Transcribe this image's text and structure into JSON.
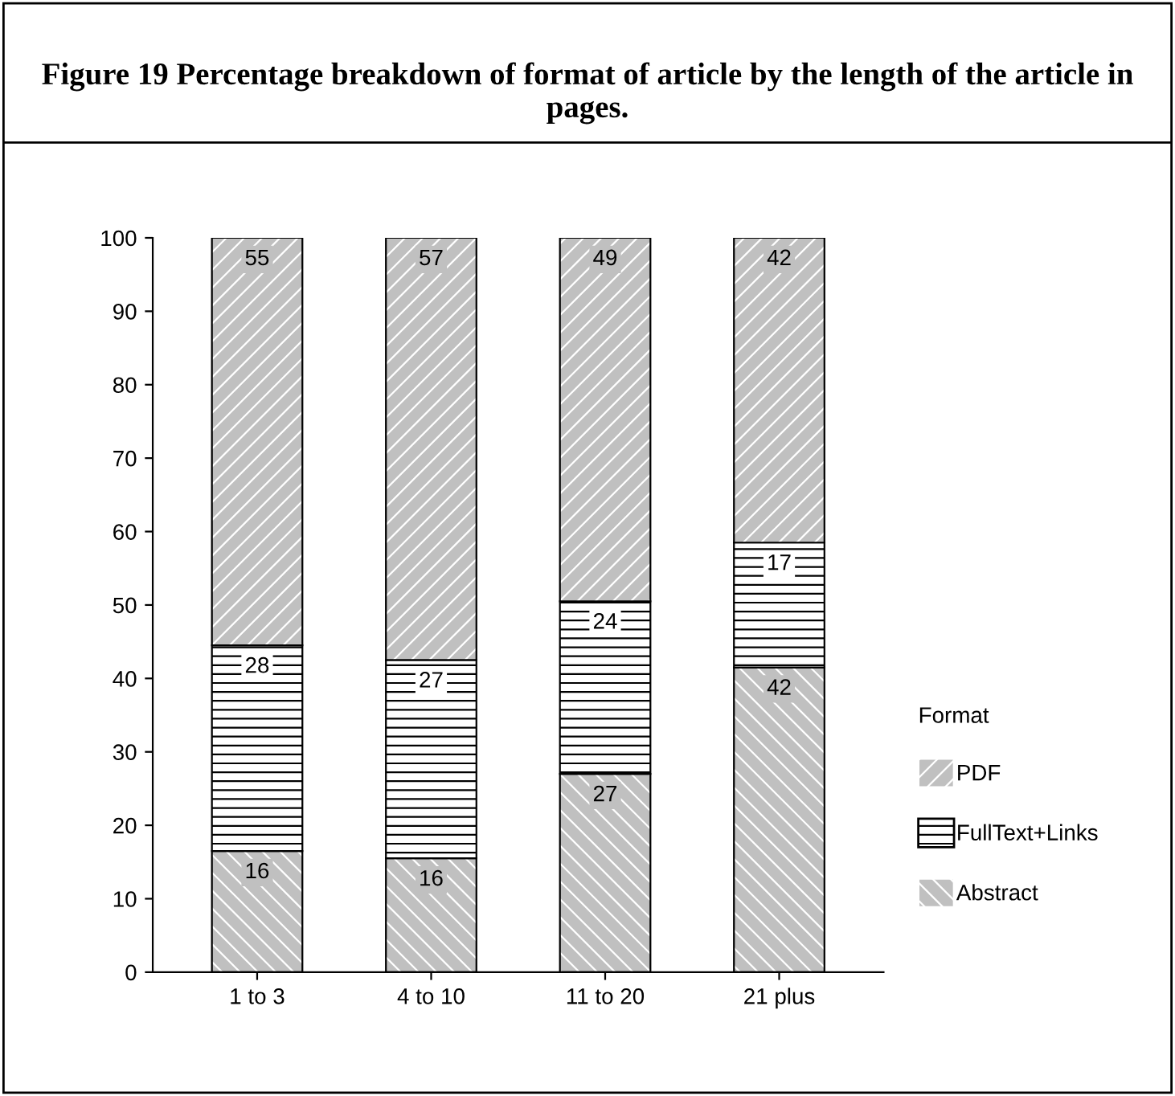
{
  "chart_data": {
    "type": "bar",
    "stacked": true,
    "title": "Figure 19 Percentage breakdown of format of article by the length of the article in pages.",
    "categories": [
      "1 to 3",
      "4 to 10",
      "11 to 20",
      "21 plus"
    ],
    "series": [
      {
        "name": "Abstract",
        "color": "#c0c0c0",
        "values": [
          16.5,
          15.5,
          27,
          41.5
        ],
        "value_labels": [
          "16",
          "16",
          "27",
          "42"
        ]
      },
      {
        "name": "FullText+Links",
        "color": "#ffffff",
        "values": [
          28,
          27,
          23.5,
          17
        ],
        "value_labels": [
          "28",
          "27",
          "24",
          "17"
        ]
      },
      {
        "name": "PDF",
        "color": "#c0c0c0",
        "values": [
          55.5,
          57.5,
          49.5,
          41.5
        ],
        "value_labels": [
          "55",
          "57",
          "49",
          "42"
        ]
      }
    ],
    "legend_title": "Format",
    "legend": "right",
    "ylim": [
      0,
      100
    ],
    "yticks": [
      0,
      10,
      20,
      30,
      40,
      50,
      60,
      70,
      80,
      90,
      100
    ],
    "grid": false
  }
}
